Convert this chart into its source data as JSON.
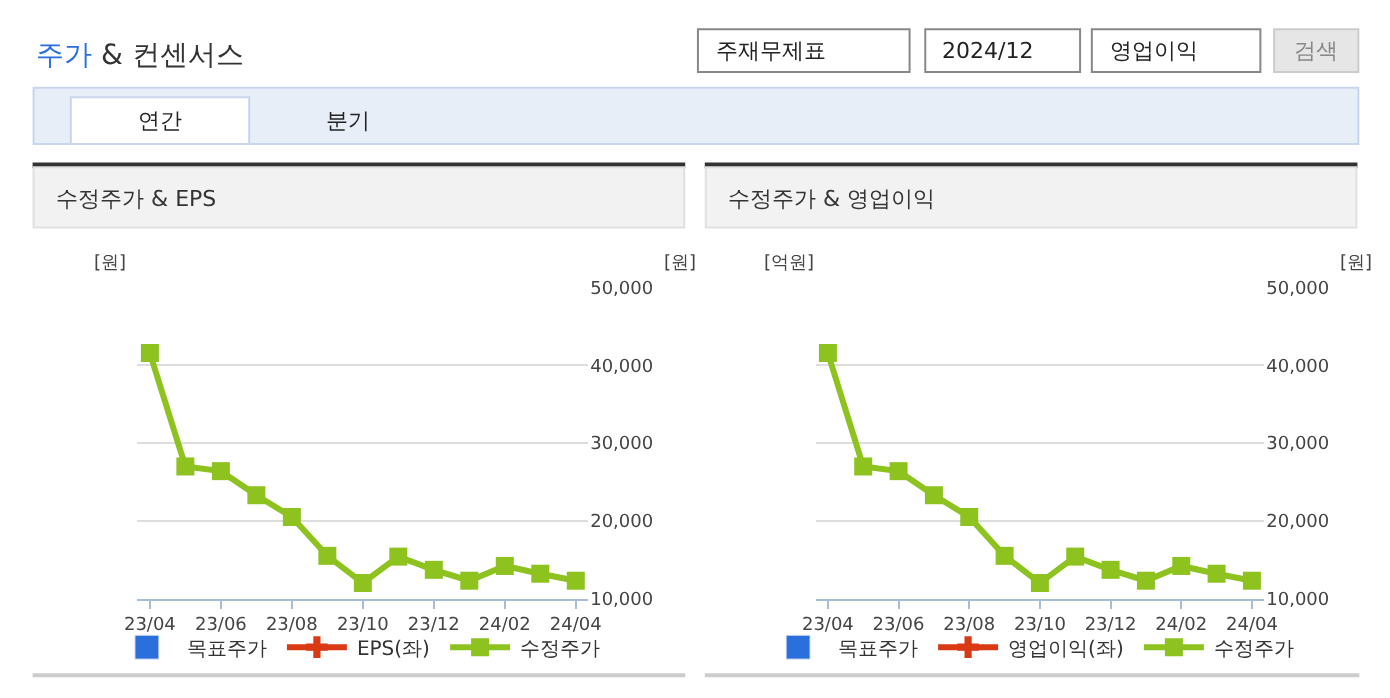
{
  "chart_data": [
    {
      "type": "other",
      "title": "주가 & 컨센서스",
      "annotations": [
        "주재무제표",
        "2024/12",
        "영업이익",
        "검색",
        "연간",
        "분기"
      ]
    },
    {
      "type": "line",
      "title": "수정주가 & EPS",
      "ylabel": "[원]",
      "y2label": "[원]",
      "categories": [
        "23/04",
        null,
        "23/06",
        null,
        "23/08",
        null,
        "23/10",
        null,
        "23/12",
        null,
        "24/02",
        null,
        "24/04"
      ],
      "series": [
        {
          "name": "목표주가",
          "type": "bar",
          "color": "#2a6fdb",
          "values": [
            null,
            null,
            null,
            null,
            null,
            null,
            null,
            null,
            null,
            null,
            null,
            null,
            null
          ]
        },
        {
          "name": "EPS(좌)",
          "type": "line",
          "marker": "cross",
          "color": "#d93a14",
          "values": [
            null,
            null,
            null,
            null,
            null,
            null,
            null,
            null,
            null,
            null,
            null,
            null,
            null
          ]
        },
        {
          "name": "수정주가",
          "type": "line",
          "marker": "square",
          "axis": "y2",
          "color": "#8dc21f",
          "values": [
            41600,
            27000,
            26400,
            23300,
            20500,
            15500,
            12000,
            15400,
            13700,
            12300,
            14200,
            13200,
            12300
          ]
        }
      ],
      "y2lim": [
        10000,
        50000
      ],
      "y2ticks": [
        {
          "value": 10000,
          "label": "10,000"
        },
        {
          "value": 20000,
          "label": "20,000"
        },
        {
          "value": 30000,
          "label": "30,000"
        },
        {
          "value": 40000,
          "label": "40,000"
        },
        {
          "value": 50000,
          "label": "50,000"
        }
      ],
      "grid": "y",
      "legend": "bottom"
    },
    {
      "type": "line",
      "title": "수정주가 & 영업이익",
      "ylabel": "[억원]",
      "y2label": "[원]",
      "categories": [
        "23/04",
        null,
        "23/06",
        null,
        "23/08",
        null,
        "23/10",
        null,
        "23/12",
        null,
        "24/02",
        null,
        "24/04"
      ],
      "series": [
        {
          "name": "목표주가",
          "type": "bar",
          "color": "#2a6fdb",
          "values": [
            null,
            null,
            null,
            null,
            null,
            null,
            null,
            null,
            null,
            null,
            null,
            null,
            null
          ]
        },
        {
          "name": "영업이익(좌)",
          "type": "line",
          "marker": "cross",
          "color": "#d93a14",
          "values": [
            null,
            null,
            null,
            null,
            null,
            null,
            null,
            null,
            null,
            null,
            null,
            null,
            null
          ]
        },
        {
          "name": "수정주가",
          "type": "line",
          "marker": "square",
          "axis": "y2",
          "color": "#8dc21f",
          "values": [
            41600,
            27000,
            26400,
            23300,
            20500,
            15500,
            12000,
            15400,
            13700,
            12300,
            14200,
            13200,
            12300
          ]
        }
      ],
      "y2lim": [
        10000,
        50000
      ],
      "y2ticks": [
        {
          "value": 10000,
          "label": "10,000"
        },
        {
          "value": 20000,
          "label": "20,000"
        },
        {
          "value": 30000,
          "label": "30,000"
        },
        {
          "value": 40000,
          "label": "40,000"
        },
        {
          "value": 50000,
          "label": "50,000"
        }
      ],
      "grid": "y",
      "legend": "bottom"
    }
  ]
}
